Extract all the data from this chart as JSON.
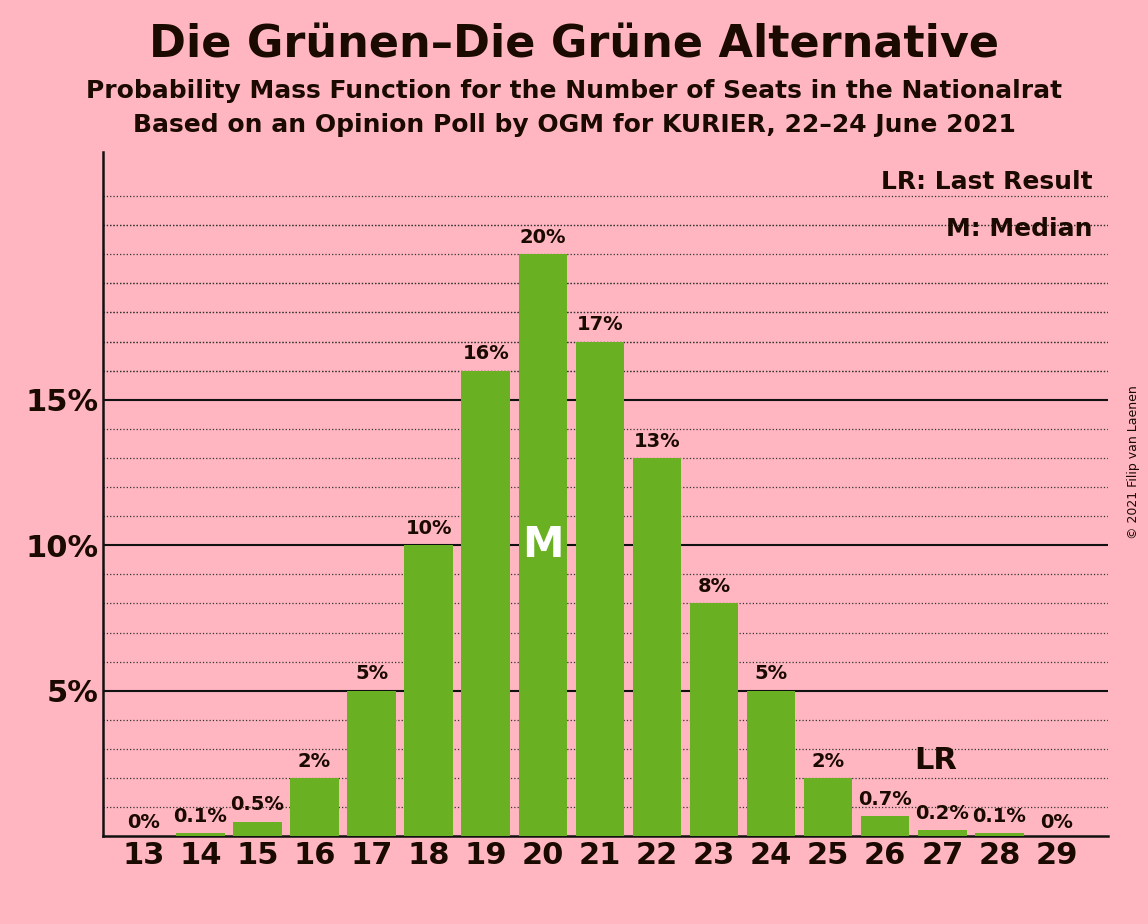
{
  "title": "Die Grünen–Die Grüne Alternative",
  "subtitle1": "Probability Mass Function for the Number of Seats in the Nationalrat",
  "subtitle2": "Based on an Opinion Poll by OGM for KURIER, 22–24 June 2021",
  "copyright": "© 2021 Filip van Laenen",
  "seats": [
    13,
    14,
    15,
    16,
    17,
    18,
    19,
    20,
    21,
    22,
    23,
    24,
    25,
    26,
    27,
    28,
    29
  ],
  "probabilities": [
    0.0,
    0.1,
    0.5,
    2.0,
    5.0,
    10.0,
    16.0,
    20.0,
    17.0,
    13.0,
    8.0,
    5.0,
    2.0,
    0.7,
    0.2,
    0.1,
    0.0
  ],
  "labels": [
    "0%",
    "0.1%",
    "0.5%",
    "2%",
    "5%",
    "10%",
    "16%",
    "20%",
    "17%",
    "13%",
    "8%",
    "5%",
    "2%",
    "0.7%",
    "0.2%",
    "0.1%",
    "0%"
  ],
  "bar_color": "#6ab023",
  "background_color": "#ffb6c1",
  "text_color": "#1a0a00",
  "median_seat": 20,
  "lr_seat": 26,
  "ylim_max": 23.5,
  "yticks": [
    5,
    10,
    15
  ],
  "ytick_labels": [
    "5%",
    "10%",
    "15%"
  ],
  "solid_lines": [
    5,
    10,
    15
  ],
  "dotted_line_positions": [
    1,
    2,
    3,
    4,
    6,
    7,
    8,
    9,
    11,
    12,
    13,
    14,
    16,
    17,
    18,
    19,
    21
  ],
  "title_fontsize": 32,
  "subtitle_fontsize": 18,
  "legend_fontsize": 18,
  "bar_label_fontsize": 14,
  "axis_label_fontsize": 22,
  "copyright_fontsize": 9
}
